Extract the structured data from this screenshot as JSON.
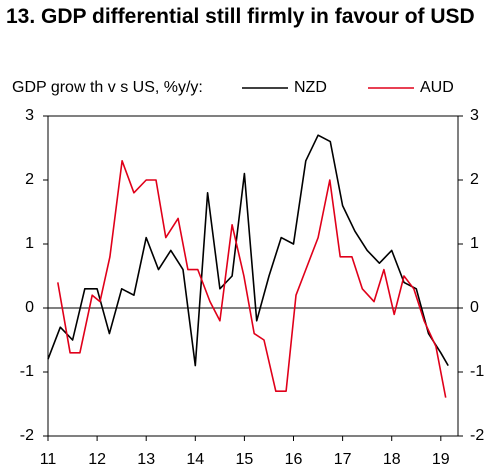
{
  "chart_data": {
    "type": "line",
    "title": "13. GDP differential still firmly in favour of USD",
    "subtitle": "GDP grow th v s US, %y/y:",
    "xlim": [
      2011,
      2019.35
    ],
    "xticks": [
      {
        "value": 2011,
        "label": "11"
      },
      {
        "value": 2012,
        "label": "12"
      },
      {
        "value": 2013,
        "label": "13"
      },
      {
        "value": 2014,
        "label": "14"
      },
      {
        "value": 2015,
        "label": "15"
      },
      {
        "value": 2016,
        "label": "16"
      },
      {
        "value": 2017,
        "label": "17"
      },
      {
        "value": 2018,
        "label": "18"
      },
      {
        "value": 2019,
        "label": "19"
      }
    ],
    "ylim": [
      -2,
      3
    ],
    "yticks": [
      -2,
      -1,
      0,
      1,
      2,
      3
    ],
    "y2lim": [
      -2,
      3
    ],
    "y2ticks": [
      -2,
      -1,
      0,
      1,
      2,
      3
    ],
    "series": [
      {
        "name": "NZD",
        "color": "#000000",
        "x": [
          2011,
          2011.25,
          2011.5,
          2011.75,
          2012,
          2012.25,
          2012.5,
          2012.75,
          2013,
          2013.25,
          2013.5,
          2013.75,
          2014,
          2014.25,
          2014.5,
          2014.75,
          2015,
          2015.25,
          2015.5,
          2015.75,
          2016,
          2016.25,
          2016.5,
          2016.75,
          2017,
          2017.25,
          2017.5,
          2017.75,
          2018,
          2018.25,
          2018.5,
          2018.75,
          2019,
          2019.15
        ],
        "values": [
          -0.8,
          -0.3,
          -0.5,
          0.3,
          0.3,
          -0.4,
          0.3,
          0.2,
          1.1,
          0.6,
          0.9,
          0.6,
          -0.9,
          1.8,
          0.3,
          0.5,
          2.1,
          -0.2,
          0.5,
          1.1,
          1.0,
          2.3,
          2.7,
          2.6,
          1.6,
          1.2,
          0.9,
          0.7,
          0.9,
          0.4,
          0.3,
          -0.4,
          -0.7,
          -0.9
        ]
      },
      {
        "name": "AUD",
        "color": "#e0001a",
        "x": [
          2011.2,
          2011.45,
          2011.65,
          2011.9,
          2012.06,
          2012.26,
          2012.51,
          2012.75,
          2013,
          2013.2,
          2013.4,
          2013.65,
          2013.85,
          2014.05,
          2014.3,
          2014.5,
          2014.75,
          2014.99,
          2015.2,
          2015.4,
          2015.64,
          2015.85,
          2016.05,
          2016.25,
          2016.5,
          2016.74,
          2016.95,
          2017.19,
          2017.4,
          2017.64,
          2017.84,
          2018.05,
          2018.25,
          2018.45,
          2018.66,
          2018.9,
          2019.1
        ],
        "values": [
          0.4,
          -0.7,
          -0.7,
          0.2,
          0.1,
          0.8,
          2.3,
          1.8,
          2.0,
          2.0,
          1.1,
          1.4,
          0.6,
          0.6,
          0.1,
          -0.2,
          1.3,
          0.5,
          -0.4,
          -0.5,
          -1.3,
          -1.3,
          0.2,
          0.6,
          1.1,
          2.0,
          0.8,
          0.8,
          0.3,
          0.1,
          0.6,
          -0.1,
          0.5,
          0.3,
          -0.2,
          -0.6,
          -1.4
        ]
      }
    ]
  }
}
